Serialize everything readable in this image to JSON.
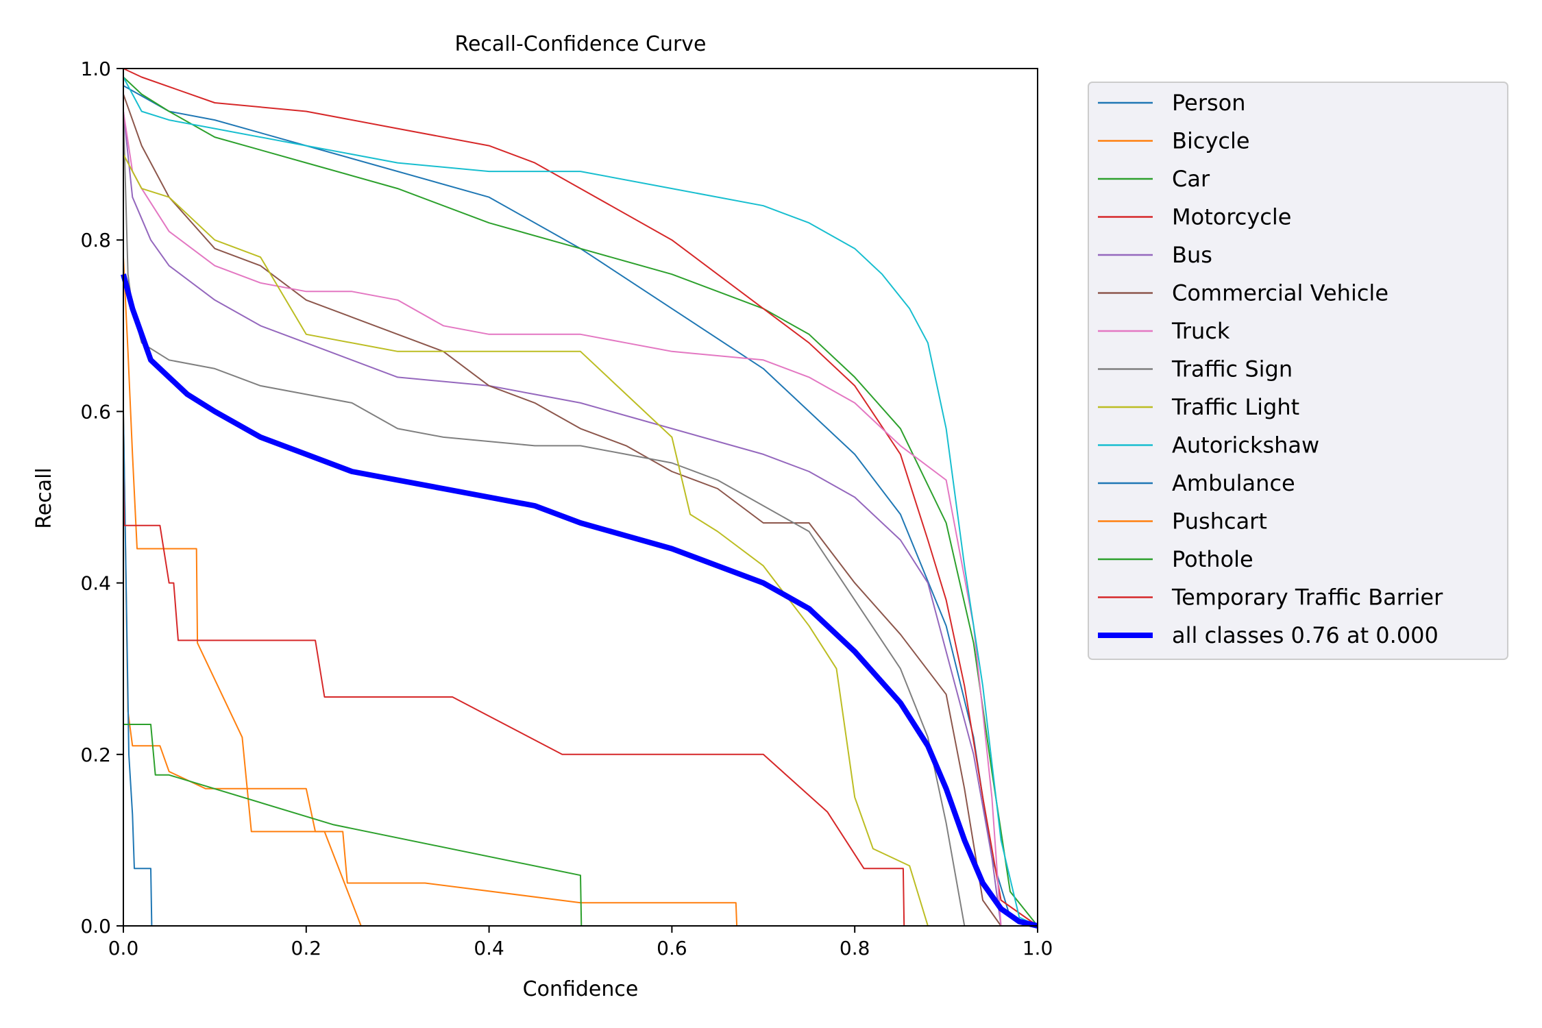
{
  "chart_data": {
    "type": "line",
    "title": "Recall-Confidence Curve",
    "xlabel": "Confidence",
    "ylabel": "Recall",
    "xlim": [
      0,
      1
    ],
    "ylim": [
      0,
      1
    ],
    "xticks": [
      "0.0",
      "0.2",
      "0.4",
      "0.6",
      "0.8",
      "1.0"
    ],
    "yticks": [
      "0.0",
      "0.2",
      "0.4",
      "0.6",
      "0.8",
      "1.0"
    ],
    "grid": false,
    "legend": "outside-right",
    "series": [
      {
        "name": "Person",
        "color": "#1f77b4",
        "width": 1,
        "x": [
          0,
          0.05,
          0.1,
          0.2,
          0.3,
          0.4,
          0.5,
          0.6,
          0.7,
          0.8,
          0.85,
          0.9,
          0.93,
          0.95,
          0.97,
          1.0
        ],
        "y": [
          0.98,
          0.95,
          0.94,
          0.91,
          0.88,
          0.85,
          0.79,
          0.72,
          0.65,
          0.55,
          0.48,
          0.35,
          0.22,
          0.08,
          0.01,
          0
        ]
      },
      {
        "name": "Bicycle",
        "color": "#ff7f0e",
        "width": 1,
        "x": [
          0,
          0.005,
          0.01,
          0.015,
          0.04,
          0.05,
          0.09,
          0.2,
          0.21,
          0.24,
          0.245,
          0.33,
          0.5,
          0.67,
          0.671,
          1.0
        ],
        "y": [
          0.6,
          0.25,
          0.21,
          0.21,
          0.21,
          0.18,
          0.16,
          0.16,
          0.11,
          0.11,
          0.05,
          0.05,
          0.027,
          0.027,
          0,
          0
        ]
      },
      {
        "name": "Car",
        "color": "#2ca02c",
        "width": 1,
        "x": [
          0,
          0.02,
          0.05,
          0.1,
          0.2,
          0.3,
          0.4,
          0.5,
          0.6,
          0.7,
          0.75,
          0.8,
          0.85,
          0.9,
          0.93,
          0.95,
          0.97,
          1.0
        ],
        "y": [
          0.99,
          0.97,
          0.95,
          0.92,
          0.89,
          0.86,
          0.82,
          0.79,
          0.76,
          0.72,
          0.69,
          0.64,
          0.58,
          0.47,
          0.33,
          0.18,
          0.04,
          0
        ]
      },
      {
        "name": "Motorcycle",
        "color": "#d62728",
        "width": 1,
        "x": [
          0,
          0.02,
          0.1,
          0.2,
          0.3,
          0.4,
          0.45,
          0.5,
          0.6,
          0.7,
          0.75,
          0.8,
          0.85,
          0.88,
          0.9,
          0.92,
          0.94,
          0.96,
          1.0
        ],
        "y": [
          1.0,
          0.99,
          0.96,
          0.95,
          0.93,
          0.91,
          0.89,
          0.86,
          0.8,
          0.72,
          0.68,
          0.63,
          0.55,
          0.45,
          0.38,
          0.28,
          0.15,
          0.03,
          0
        ]
      },
      {
        "name": "Bus",
        "color": "#9467bd",
        "width": 1,
        "x": [
          0,
          0.01,
          0.03,
          0.05,
          0.1,
          0.15,
          0.2,
          0.3,
          0.4,
          0.45,
          0.5,
          0.6,
          0.7,
          0.75,
          0.8,
          0.85,
          0.88,
          0.9,
          0.93,
          0.95,
          0.96,
          1.0
        ],
        "y": [
          0.95,
          0.85,
          0.8,
          0.77,
          0.73,
          0.7,
          0.68,
          0.64,
          0.63,
          0.62,
          0.61,
          0.58,
          0.55,
          0.53,
          0.5,
          0.45,
          0.4,
          0.32,
          0.2,
          0.08,
          0,
          0
        ]
      },
      {
        "name": "Commercial Vehicle",
        "color": "#8c564b",
        "width": 1,
        "x": [
          0,
          0.02,
          0.05,
          0.1,
          0.15,
          0.2,
          0.25,
          0.3,
          0.35,
          0.4,
          0.45,
          0.5,
          0.55,
          0.6,
          0.65,
          0.7,
          0.75,
          0.8,
          0.85,
          0.9,
          0.92,
          0.94,
          0.96,
          1.0
        ],
        "y": [
          0.97,
          0.91,
          0.85,
          0.79,
          0.77,
          0.73,
          0.71,
          0.69,
          0.67,
          0.63,
          0.61,
          0.58,
          0.56,
          0.53,
          0.51,
          0.47,
          0.47,
          0.4,
          0.34,
          0.27,
          0.16,
          0.03,
          0,
          0
        ]
      },
      {
        "name": "Truck",
        "color": "#e377c2",
        "width": 1,
        "x": [
          0,
          0.01,
          0.02,
          0.05,
          0.1,
          0.15,
          0.2,
          0.25,
          0.3,
          0.35,
          0.4,
          0.5,
          0.55,
          0.6,
          0.7,
          0.75,
          0.8,
          0.85,
          0.9,
          0.93,
          0.95,
          0.96,
          1.0
        ],
        "y": [
          0.95,
          0.88,
          0.86,
          0.81,
          0.77,
          0.75,
          0.74,
          0.74,
          0.73,
          0.7,
          0.69,
          0.69,
          0.68,
          0.67,
          0.66,
          0.64,
          0.61,
          0.56,
          0.52,
          0.35,
          0.15,
          0,
          0
        ]
      },
      {
        "name": "Traffic Sign",
        "color": "#7f7f7f",
        "width": 1,
        "x": [
          0,
          0.005,
          0.01,
          0.02,
          0.05,
          0.1,
          0.15,
          0.2,
          0.25,
          0.3,
          0.35,
          0.45,
          0.5,
          0.55,
          0.6,
          0.65,
          0.7,
          0.75,
          0.8,
          0.85,
          0.88,
          0.9,
          0.92,
          1.0
        ],
        "y": [
          0.95,
          0.76,
          0.72,
          0.68,
          0.66,
          0.65,
          0.63,
          0.62,
          0.61,
          0.58,
          0.57,
          0.56,
          0.56,
          0.55,
          0.54,
          0.52,
          0.49,
          0.46,
          0.38,
          0.3,
          0.22,
          0.12,
          0,
          0
        ]
      },
      {
        "name": "Traffic Light",
        "color": "#bcbd22",
        "width": 1,
        "x": [
          0,
          0.02,
          0.05,
          0.1,
          0.15,
          0.2,
          0.3,
          0.35,
          0.4,
          0.45,
          0.5,
          0.55,
          0.6,
          0.62,
          0.65,
          0.7,
          0.75,
          0.78,
          0.8,
          0.82,
          0.84,
          0.86,
          0.88,
          1.0
        ],
        "y": [
          0.9,
          0.86,
          0.85,
          0.8,
          0.78,
          0.69,
          0.67,
          0.67,
          0.67,
          0.67,
          0.67,
          0.62,
          0.57,
          0.48,
          0.46,
          0.42,
          0.35,
          0.3,
          0.15,
          0.09,
          0.08,
          0.07,
          0,
          0
        ]
      },
      {
        "name": "Autorickshaw",
        "color": "#17becf",
        "width": 1,
        "x": [
          0,
          0.02,
          0.05,
          0.1,
          0.2,
          0.3,
          0.4,
          0.5,
          0.6,
          0.7,
          0.75,
          0.8,
          0.83,
          0.86,
          0.88,
          0.9,
          0.92,
          0.94,
          0.96,
          0.98,
          1.0
        ],
        "y": [
          0.99,
          0.95,
          0.94,
          0.93,
          0.91,
          0.89,
          0.88,
          0.88,
          0.86,
          0.84,
          0.82,
          0.79,
          0.76,
          0.72,
          0.68,
          0.58,
          0.42,
          0.28,
          0.1,
          0.01,
          0
        ]
      },
      {
        "name": "Ambulance",
        "color": "#1f77b4",
        "width": 1,
        "x": [
          0,
          0.003,
          0.006,
          0.01,
          0.012,
          0.03,
          0.031,
          1.0
        ],
        "y": [
          0.6,
          0.4,
          0.2,
          0.13,
          0.067,
          0.067,
          0,
          0
        ]
      },
      {
        "name": "Pushcart",
        "color": "#ff7f0e",
        "width": 1,
        "x": [
          0,
          0.005,
          0.01,
          0.015,
          0.08,
          0.081,
          0.13,
          0.14,
          0.22,
          0.26,
          0.261,
          1.0
        ],
        "y": [
          0.78,
          0.67,
          0.55,
          0.44,
          0.44,
          0.33,
          0.22,
          0.11,
          0.11,
          0,
          0,
          0
        ]
      },
      {
        "name": "Pothole",
        "color": "#2ca02c",
        "width": 1,
        "x": [
          0,
          0.03,
          0.035,
          0.05,
          0.23,
          0.5,
          0.501,
          1.0
        ],
        "y": [
          0.235,
          0.235,
          0.176,
          0.176,
          0.118,
          0.059,
          0,
          0
        ]
      },
      {
        "name": "Temporary Traffic Barrier",
        "color": "#d62728",
        "width": 1,
        "x": [
          0,
          0.001,
          0.04,
          0.05,
          0.055,
          0.06,
          0.21,
          0.22,
          0.36,
          0.48,
          0.7,
          0.77,
          0.81,
          0.82,
          0.853,
          0.854,
          1.0
        ],
        "y": [
          0.53,
          0.467,
          0.467,
          0.4,
          0.4,
          0.333,
          0.333,
          0.267,
          0.267,
          0.2,
          0.2,
          0.133,
          0.067,
          0.067,
          0.067,
          0,
          0
        ]
      },
      {
        "name": "all classes 0.76 at 0.000",
        "color": "#0000ff",
        "width": 4,
        "x": [
          0,
          0.01,
          0.02,
          0.03,
          0.05,
          0.07,
          0.1,
          0.15,
          0.2,
          0.25,
          0.3,
          0.35,
          0.4,
          0.45,
          0.5,
          0.55,
          0.6,
          0.65,
          0.7,
          0.75,
          0.8,
          0.85,
          0.88,
          0.9,
          0.92,
          0.94,
          0.96,
          0.98,
          1.0
        ],
        "y": [
          0.76,
          0.72,
          0.69,
          0.66,
          0.64,
          0.62,
          0.6,
          0.57,
          0.55,
          0.53,
          0.52,
          0.51,
          0.5,
          0.49,
          0.47,
          0.455,
          0.44,
          0.42,
          0.4,
          0.37,
          0.32,
          0.26,
          0.21,
          0.16,
          0.1,
          0.05,
          0.02,
          0.005,
          0
        ]
      }
    ]
  }
}
